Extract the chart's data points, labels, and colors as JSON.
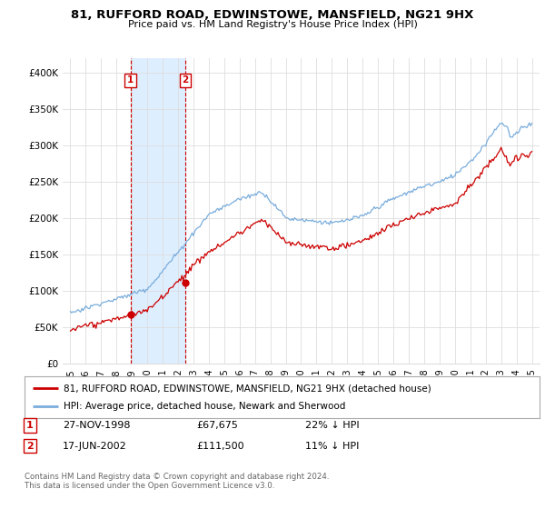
{
  "title1": "81, RUFFORD ROAD, EDWINSTOWE, MANSFIELD, NG21 9HX",
  "title2": "Price paid vs. HM Land Registry's House Price Index (HPI)",
  "ylabel_ticks": [
    "£0",
    "£50K",
    "£100K",
    "£150K",
    "£200K",
    "£250K",
    "£300K",
    "£350K",
    "£400K"
  ],
  "ytick_vals": [
    0,
    50000,
    100000,
    150000,
    200000,
    250000,
    300000,
    350000,
    400000
  ],
  "ylim": [
    0,
    420000
  ],
  "xlim_start": 1994.5,
  "xlim_end": 2025.5,
  "legend_line1": "81, RUFFORD ROAD, EDWINSTOWE, MANSFIELD, NG21 9HX (detached house)",
  "legend_line2": "HPI: Average price, detached house, Newark and Sherwood",
  "transaction1_label": "1",
  "transaction1_date": "27-NOV-1998",
  "transaction1_price": "£67,675",
  "transaction1_hpi": "22% ↓ HPI",
  "transaction1_x": 1998.9,
  "transaction1_y": 67675,
  "transaction2_label": "2",
  "transaction2_date": "17-JUN-2002",
  "transaction2_price": "£111,500",
  "transaction2_hpi": "11% ↓ HPI",
  "transaction2_x": 2002.46,
  "transaction2_y": 111500,
  "footer": "Contains HM Land Registry data © Crown copyright and database right 2024.\nThis data is licensed under the Open Government Licence v3.0.",
  "color_red": "#cc0000",
  "color_blue": "#7aaddc",
  "color_span": "#ddeeff",
  "bg_color": "#ffffff",
  "grid_color": "#dddddd"
}
